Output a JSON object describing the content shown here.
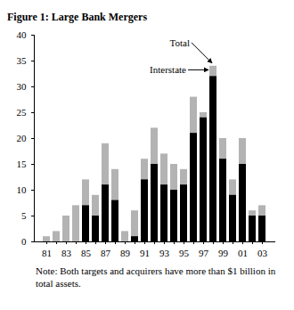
{
  "chart_data": {
    "type": "bar",
    "title": "Figure 1: Large Bank Mergers",
    "note": "Note: Both targets and acquirers have more than $1 billion in total assets.",
    "categories": [
      "81",
      null,
      "83",
      null,
      "85",
      null,
      "87",
      null,
      "89",
      null,
      "91",
      null,
      "93",
      null,
      "95",
      null,
      "97",
      null,
      "99",
      null,
      "01",
      null,
      "03"
    ],
    "series": [
      {
        "name": "Total",
        "color": "#b3b3b3",
        "values": [
          1,
          2,
          5,
          7,
          12,
          9,
          19,
          14,
          2,
          6,
          16,
          22,
          17,
          15,
          14,
          28,
          25,
          34,
          20,
          12,
          20,
          6,
          7
        ]
      },
      {
        "name": "Interstate",
        "color": "#000000",
        "values": [
          0,
          0,
          0,
          0,
          7,
          5,
          11,
          8,
          0,
          1,
          12,
          15,
          11,
          10,
          11,
          21,
          24,
          32,
          16,
          9,
          15,
          5,
          5
        ]
      }
    ],
    "stacked": false,
    "ylim": [
      0,
      40
    ],
    "yticks": [
      0,
      5,
      10,
      15,
      20,
      25,
      30,
      35,
      40
    ],
    "grid": false
  }
}
